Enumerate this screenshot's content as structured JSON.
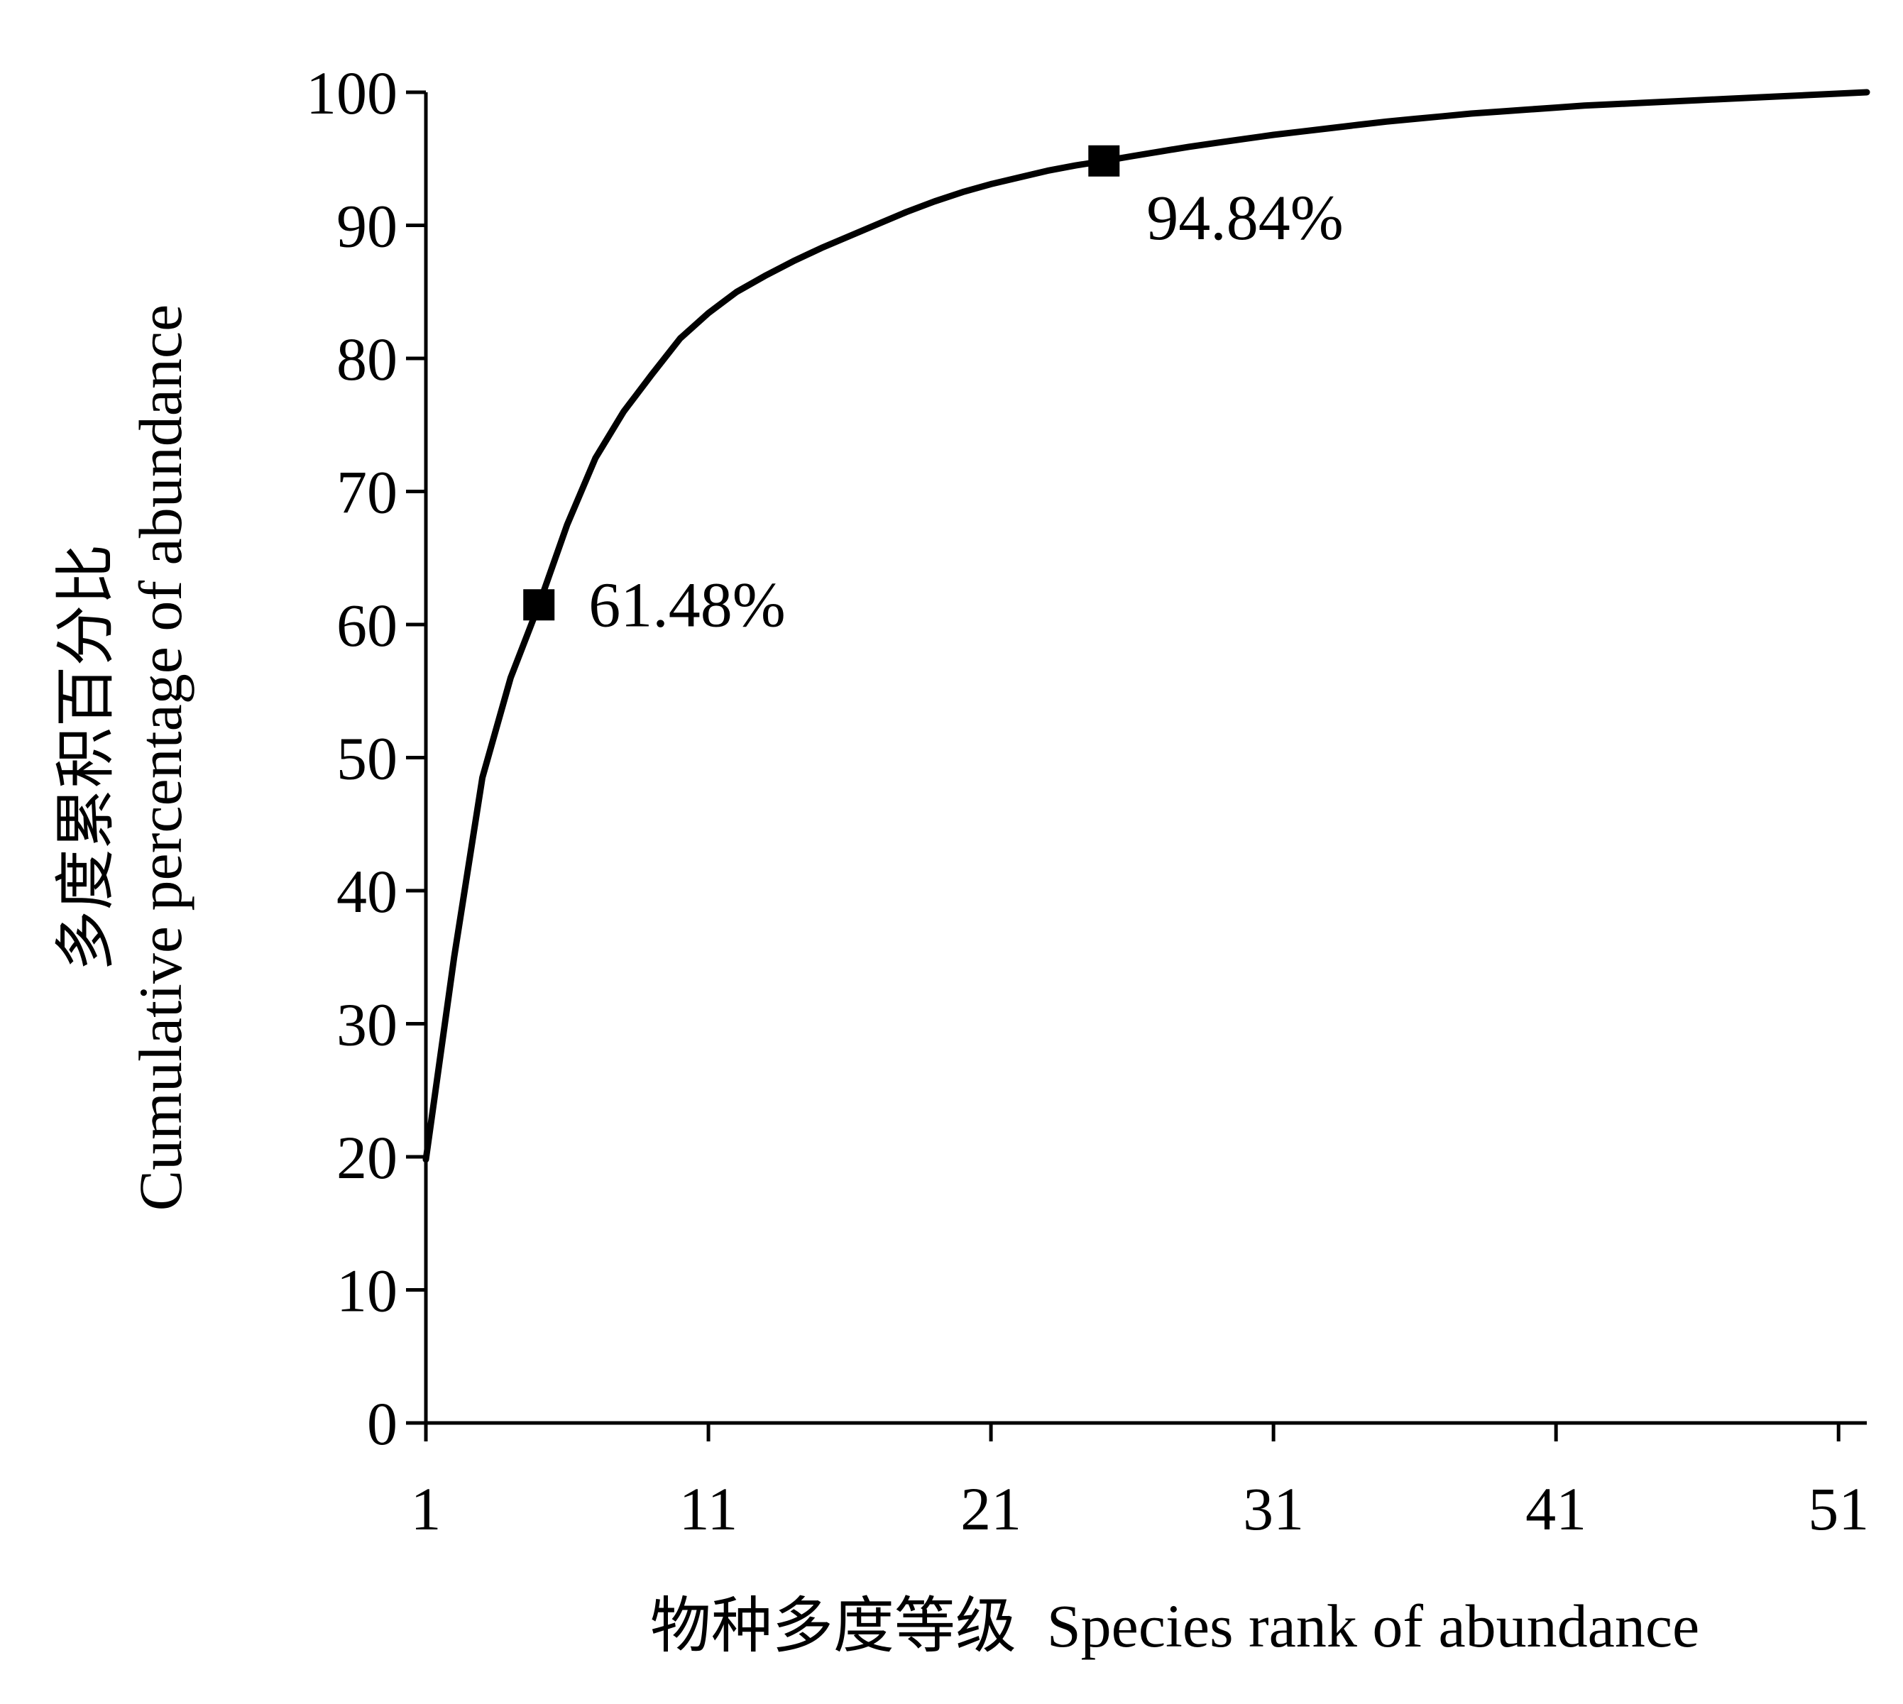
{
  "chart_data": {
    "type": "line",
    "xlabel": "物种多度等级  Species rank of abundance",
    "ylabel_line1": "多度累积百分比",
    "ylabel_line2": "Cumulative percentage of abundance",
    "xlim": [
      1,
      52
    ],
    "ylim": [
      0,
      100
    ],
    "x_ticks": [
      1,
      11,
      21,
      31,
      41,
      51
    ],
    "x_tick_labels": [
      "1",
      "11",
      "21",
      "31",
      "41",
      "51"
    ],
    "y_ticks": [
      0,
      10,
      20,
      30,
      40,
      50,
      60,
      70,
      80,
      90,
      100
    ],
    "y_tick_labels": [
      "0",
      "10",
      "20",
      "30",
      "40",
      "50",
      "60",
      "70",
      "80",
      "90",
      "100"
    ],
    "grid": false,
    "series": [
      {
        "x": [
          1,
          2,
          3,
          4,
          5,
          6,
          7,
          8,
          9,
          10,
          11,
          12,
          13,
          14,
          15,
          16,
          17,
          18,
          19,
          20,
          21,
          22,
          23,
          24,
          25,
          26,
          27,
          28,
          29,
          30,
          31,
          32,
          33,
          34,
          35,
          36,
          37,
          38,
          39,
          40,
          41,
          42,
          43,
          44,
          45,
          46,
          47,
          48,
          49,
          50,
          51,
          52
        ],
        "y": [
          19.8,
          35.0,
          48.5,
          56.0,
          61.48,
          67.5,
          72.5,
          76.0,
          78.8,
          81.5,
          83.4,
          85.0,
          86.2,
          87.3,
          88.3,
          89.2,
          90.1,
          91.0,
          91.8,
          92.5,
          93.1,
          93.6,
          94.1,
          94.5,
          94.84,
          95.2,
          95.55,
          95.9,
          96.2,
          96.5,
          96.8,
          97.05,
          97.3,
          97.55,
          97.8,
          98.0,
          98.2,
          98.4,
          98.55,
          98.7,
          98.85,
          99.0,
          99.1,
          99.2,
          99.3,
          99.4,
          99.5,
          99.6,
          99.7,
          99.8,
          99.9,
          100.0
        ]
      }
    ],
    "markers": [
      {
        "x": 5,
        "y": 61.48,
        "label": "61.48%"
      },
      {
        "x": 25,
        "y": 94.84,
        "label": "94.84%"
      }
    ],
    "colors": {
      "line": "#000000",
      "axis": "#000000",
      "background": "#ffffff"
    }
  }
}
